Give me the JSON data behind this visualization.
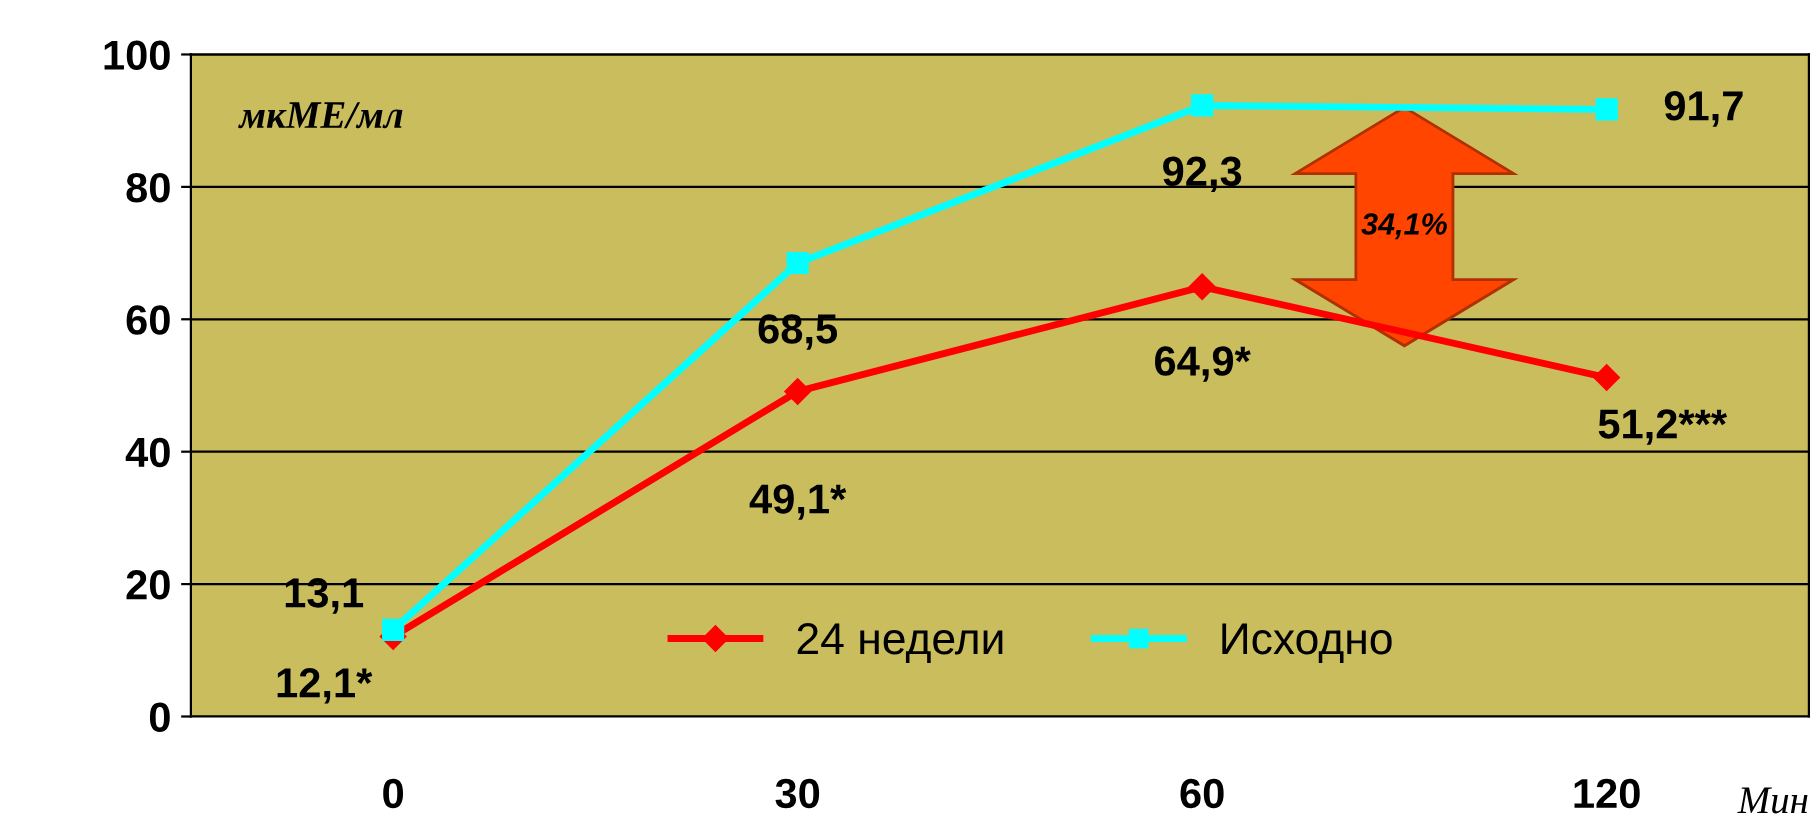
{
  "chart_data": {
    "type": "line",
    "categories": [
      "0",
      "30",
      "60",
      "120"
    ],
    "series": [
      {
        "name": "24 недели",
        "color": "#ff0000",
        "marker": "diamond",
        "values": [
          12.1,
          49.1,
          64.9,
          51.2
        ],
        "value_labels": [
          "12,1*",
          "49,1*",
          "64,9*",
          "51,2***"
        ]
      },
      {
        "name": "Исходно",
        "color": "#00ffff",
        "marker": "square",
        "values": [
          13.1,
          68.5,
          92.3,
          91.7
        ],
        "value_labels": [
          "13,1",
          "68,5",
          "92,3",
          "91,7"
        ]
      }
    ],
    "ylabel": "мкМЕ/мл",
    "xlabel": "Мин",
    "ylim": [
      0,
      100
    ],
    "yticks": [
      0,
      20,
      40,
      60,
      80,
      100
    ],
    "grid": "y",
    "legend": "bottom",
    "line_style": "solid",
    "annotations": [
      "34,1%"
    ]
  }
}
